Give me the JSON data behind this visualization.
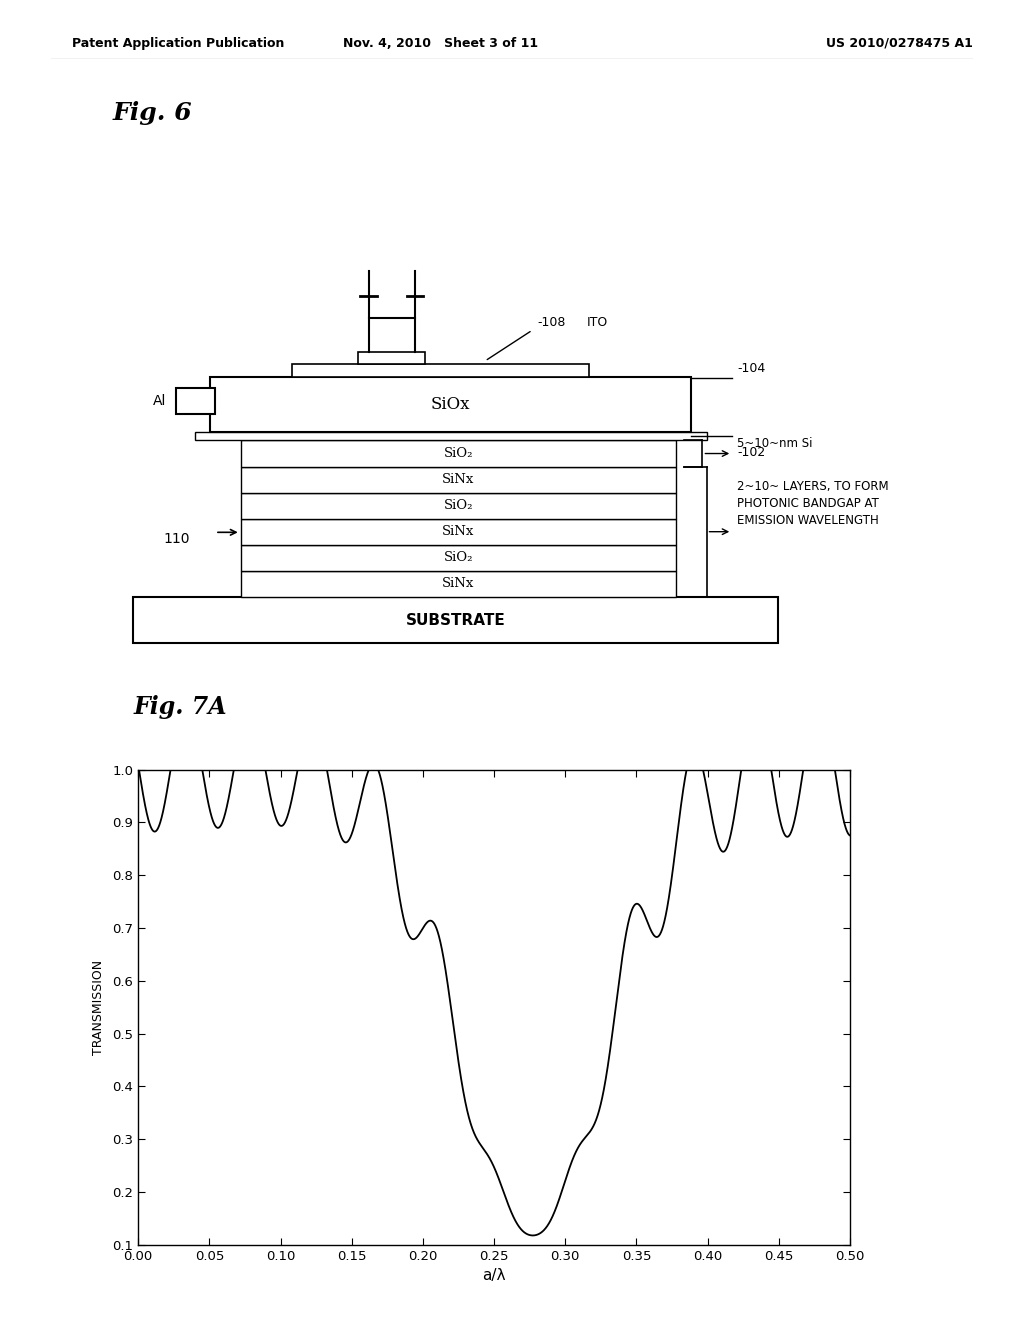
{
  "header_left": "Patent Application Publication",
  "header_center": "Nov. 4, 2010   Sheet 3 of 11",
  "header_right": "US 2010/0278475 A1",
  "fig6_label": "Fig. 6",
  "fig7a_label": "Fig. 7A",
  "diagram": {
    "substrate_label": "SUBSTRATE",
    "sinox_label": "SiOx",
    "ito_label": "ITO",
    "al_label": "Al",
    "layers": [
      "SiNx",
      "SiO₂",
      "SiNx",
      "SiO₂",
      "SiNx",
      "SiO₂"
    ],
    "label_108": "-108",
    "label_104": "-104",
    "label_102": "-102",
    "label_110": "110",
    "annotation_si": "5~10~nm Si",
    "annotation_layers": "2~10~ LAYERS, TO FORM\nPHOTONIC BANDGAP AT\nEMISSION WAVELENGTH"
  },
  "plot": {
    "xlabel": "a/λ",
    "ylabel": "TRANSMISSION",
    "xlim": [
      0.0,
      0.5
    ],
    "ylim": [
      0.1,
      1.0
    ],
    "xticks": [
      0.0,
      0.05,
      0.1,
      0.15,
      0.2,
      0.25,
      0.3,
      0.35,
      0.4,
      0.45,
      0.5
    ],
    "yticks": [
      0.1,
      0.2,
      0.3,
      0.4,
      0.5,
      0.6,
      0.7,
      0.8,
      0.9,
      1.0
    ],
    "xtick_labels": [
      "0.00",
      "0.05",
      "0.10",
      "0.15",
      "0.20",
      "0.25",
      "0.30",
      "0.35",
      "0.40",
      "0.45",
      "0.50"
    ],
    "ytick_labels": [
      "0.1",
      "0.2",
      "0.3",
      "0.4",
      "0.5",
      "0.6",
      "0.7",
      "0.8",
      "0.9",
      "1.0"
    ],
    "line_color": "#000000",
    "background_color": "#ffffff"
  }
}
